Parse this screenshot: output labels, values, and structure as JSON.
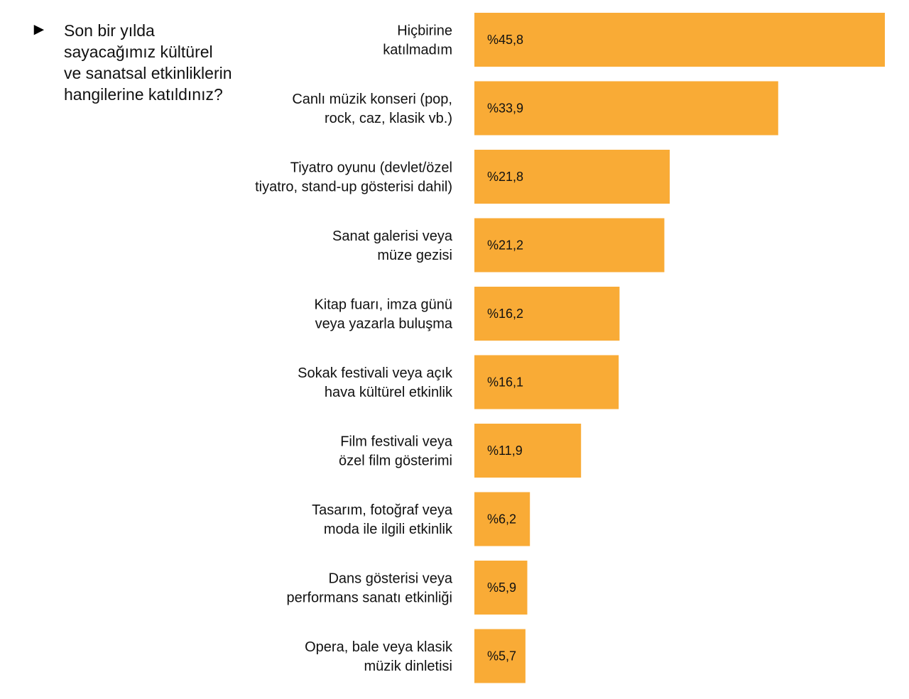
{
  "question": {
    "marker": "►",
    "text": "Son bir yılda sayacağımız kültürel ve sanatsal etkinliklerin hangilerine katıldınız?"
  },
  "colors": {
    "bar": "#F9AB36",
    "text": "#111111"
  },
  "chart_data": {
    "type": "bar",
    "orientation": "horizontal",
    "value_prefix": "%",
    "decimal_separator": ",",
    "xlim": [
      0,
      45.8
    ],
    "categories": [
      [
        "Hiçbirine",
        "katılmadım"
      ],
      [
        "Canlı müzik konseri (pop,",
        "rock, caz, klasik vb.)"
      ],
      [
        "Tiyatro oyunu (devlet/özel",
        "tiyatro, stand-up gösterisi dahil)"
      ],
      [
        "Sanat galerisi veya",
        "müze gezisi"
      ],
      [
        "Kitap fuarı, imza günü",
        "veya yazarla buluşma"
      ],
      [
        "Sokak festivali veya açık",
        "hava kültürel etkinlik"
      ],
      [
        "Film festivali veya",
        "özel film gösterimi"
      ],
      [
        "Tasarım, fotoğraf veya",
        "moda ile ilgili etkinlik"
      ],
      [
        "Dans gösterisi veya",
        "performans sanatı etkinliği"
      ],
      [
        "Opera, bale veya klasik",
        "müzik dinletisi"
      ]
    ],
    "values": [
      45.8,
      33.9,
      21.8,
      21.2,
      16.2,
      16.1,
      11.9,
      6.2,
      5.9,
      5.7
    ],
    "value_labels": [
      "%45,8",
      "%33,9",
      "%21,8",
      "%21,2",
      "%16,2",
      "%16,1",
      "%11,9",
      "%6,2",
      "%5,9",
      "%5,7"
    ]
  }
}
